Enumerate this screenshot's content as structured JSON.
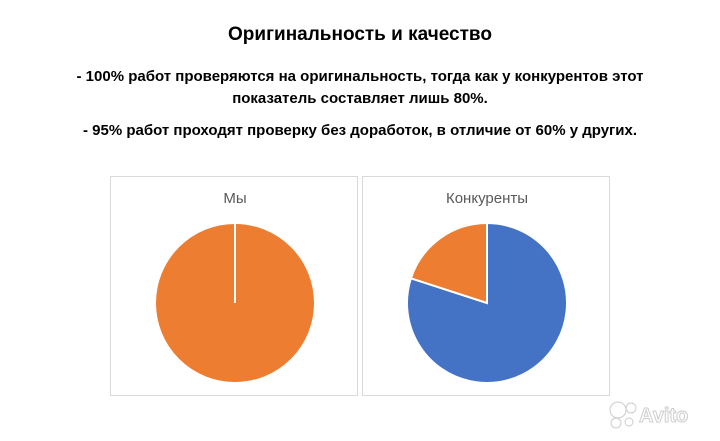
{
  "heading": "Оригинальность и качество",
  "points": [
    "- 100% работ проверяются на оригинальность, тогда как у конкурентов этот показатель составляет лишь 80%.",
    "- 95% работ проходят проверку без доработок, в отличие от 60% у других."
  ],
  "watermark": "Avito",
  "chart_data": [
    {
      "type": "pie",
      "title": "Мы",
      "values": [
        100,
        0
      ],
      "colors": [
        "#ed7d31",
        "#4472c4"
      ],
      "start_angle_deg": 0,
      "direction": "clockwise"
    },
    {
      "type": "pie",
      "title": "Конкуренты",
      "values": [
        80,
        20
      ],
      "colors": [
        "#4472c4",
        "#ed7d31"
      ],
      "start_angle_deg": 0,
      "direction": "clockwise"
    }
  ]
}
